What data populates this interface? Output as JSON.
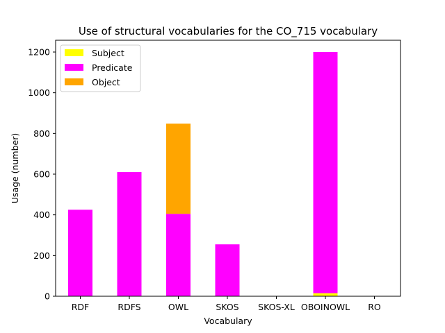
{
  "chart_data": {
    "type": "bar",
    "stacked": true,
    "title": "Use of structural vocabularies for the CO_715 vocabulary",
    "xlabel": "Vocabulary",
    "ylabel": "Usage (number)",
    "categories": [
      "RDF",
      "RDFS",
      "OWL",
      "SKOS",
      "SKOS-XL",
      "OBOINOWL",
      "RO"
    ],
    "series": [
      {
        "name": "Subject",
        "color": "#ffff00",
        "values": [
          0,
          0,
          0,
          0,
          0,
          15,
          0
        ]
      },
      {
        "name": "Predicate",
        "color": "#ff00ff",
        "values": [
          425,
          610,
          405,
          255,
          0,
          1185,
          0
        ]
      },
      {
        "name": "Object",
        "color": "#ffa500",
        "values": [
          0,
          0,
          443,
          0,
          0,
          0,
          0
        ]
      }
    ],
    "ylim": [
      0,
      1258
    ],
    "yticks": [
      0,
      200,
      400,
      600,
      800,
      1000,
      1200
    ],
    "grid": false,
    "legend": "upper left"
  }
}
